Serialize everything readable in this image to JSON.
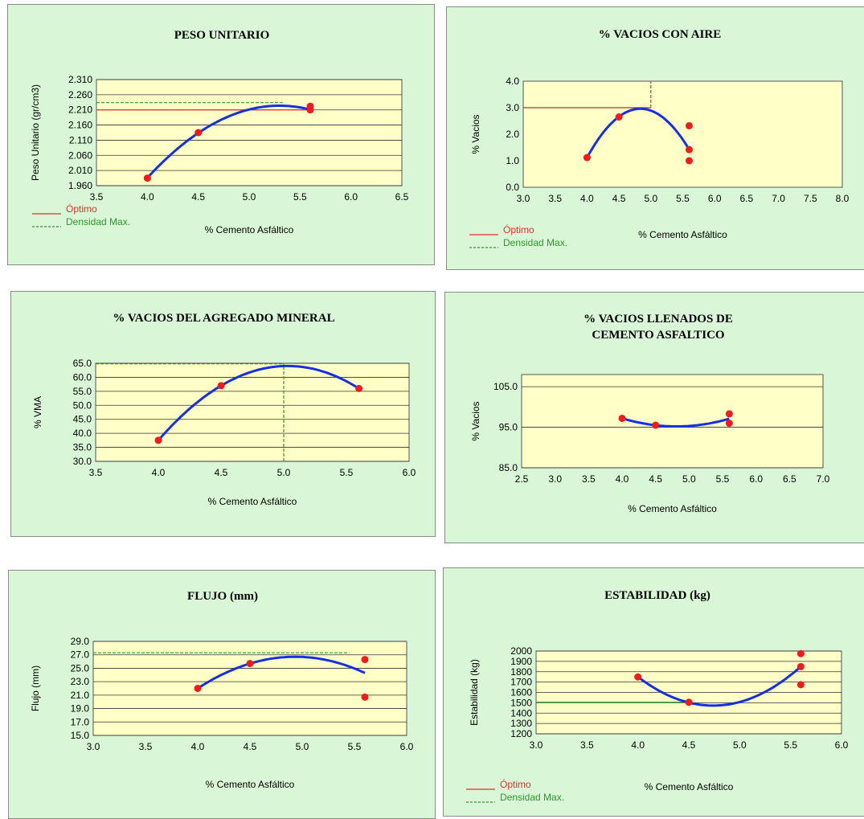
{
  "chart_data": [
    {
      "type": "scatter",
      "title": "PESO UNITARIO",
      "xlabel": "% Cemento Asfáltico",
      "ylabel": "Peso Unitario (gr/cm3)",
      "xlim": [
        3.5,
        6.5
      ],
      "ylim": [
        1.96,
        2.31
      ],
      "xticks": [
        "3.5",
        "4.0",
        "4.5",
        "5.0",
        "5.5",
        "6.0",
        "6.5"
      ],
      "yticks": [
        "1.960",
        "2.010",
        "2.060",
        "2.110",
        "2.160",
        "2.210",
        "2.260",
        "2.310"
      ],
      "points": [
        [
          4.0,
          1.985
        ],
        [
          4.5,
          2.135
        ],
        [
          5.6,
          2.222
        ],
        [
          5.6,
          2.21
        ]
      ],
      "curve": [
        [
          4.0,
          1.985
        ],
        [
          4.5,
          2.135
        ],
        [
          5.3,
          2.222
        ],
        [
          5.6,
          2.212
        ]
      ],
      "refs": [
        {
          "kind": "h",
          "y": 2.21,
          "x0": 3.5,
          "x1": 5.6,
          "color": "#e03030",
          "dash": false
        },
        {
          "kind": "h",
          "y": 2.234,
          "x0": 3.5,
          "x1": 5.35,
          "color": "#2a9a2a",
          "dash": true
        }
      ],
      "legend": [
        {
          "label": "Óptimo",
          "color": "#e03030",
          "dash": false
        },
        {
          "label": "Densidad Max.",
          "color": "#2a9a2a",
          "dash": true
        }
      ],
      "grid": true
    },
    {
      "type": "scatter",
      "title": "% VACIOS CON AIRE",
      "xlabel": "% Cemento Asfáltico",
      "ylabel": "% Vacios",
      "xlim": [
        3.0,
        8.0
      ],
      "ylim": [
        0.0,
        4.0
      ],
      "xticks": [
        "3.0",
        "3.5",
        "4.0",
        "4.5",
        "5.0",
        "5.5",
        "6.0",
        "6.5",
        "7.0",
        "7.5",
        "8.0"
      ],
      "yticks": [
        "0.0",
        "1.0",
        "2.0",
        "3.0",
        "4.0"
      ],
      "points": [
        [
          4.0,
          1.12
        ],
        [
          4.5,
          2.65
        ],
        [
          5.6,
          2.32
        ],
        [
          5.6,
          1.42
        ],
        [
          5.6,
          1.0
        ]
      ],
      "curve": [
        [
          4.0,
          1.12
        ],
        [
          4.5,
          2.65
        ],
        [
          4.85,
          2.97
        ],
        [
          5.6,
          1.42
        ]
      ],
      "refs": [
        {
          "kind": "h",
          "y": 3.0,
          "x0": 3.0,
          "x1": 5.0,
          "color": "#b03030",
          "dash": false
        },
        {
          "kind": "v",
          "x": 5.0,
          "y0": 3.0,
          "y1": 4.0,
          "color": "#e03030",
          "dash": true
        }
      ],
      "legend": [
        {
          "label": "Óptimo",
          "color": "#e03030",
          "dash": false
        },
        {
          "label": "Densidad Max.",
          "color": "#2a9a2a",
          "dash": true
        }
      ],
      "grid": false
    },
    {
      "type": "scatter",
      "title": "% VACIOS DEL AGREGADO MINERAL",
      "xlabel": "% Cemento Asfáltico",
      "ylabel": "% VMA",
      "xlim": [
        3.5,
        6.0
      ],
      "ylim": [
        30.0,
        65.0
      ],
      "xticks": [
        "3.5",
        "4.0",
        "4.5",
        "5.0",
        "5.5",
        "6.0"
      ],
      "yticks": [
        "30.0",
        "35.0",
        "40.0",
        "45.0",
        "50.0",
        "55.0",
        "60.0",
        "65.0"
      ],
      "points": [
        [
          4.0,
          37.5
        ],
        [
          4.5,
          57.0
        ],
        [
          5.6,
          56.0
        ]
      ],
      "curve": [
        [
          4.0,
          37.5
        ],
        [
          4.5,
          57.0
        ],
        [
          5.0,
          64.0
        ],
        [
          5.6,
          56.0
        ]
      ],
      "refs": [
        {
          "kind": "h",
          "y": 64.8,
          "x0": 3.5,
          "x1": 5.0,
          "color": "#2a9a2a",
          "dash": true
        },
        {
          "kind": "v",
          "x": 5.0,
          "y0": 30.0,
          "y1": 64.8,
          "color": "#2a9a2a",
          "dash": true
        }
      ],
      "legend": [],
      "grid": true
    },
    {
      "type": "scatter",
      "title": [
        "% VACIOS LLENADOS DE",
        "CEMENTO ASFALTICO"
      ],
      "xlabel": "% Cemento Asfáltico",
      "ylabel": "% Vacios",
      "xlim": [
        2.5,
        7.0
      ],
      "ylim": [
        85.0,
        108.0
      ],
      "xticks": [
        "2.5",
        "3.0",
        "3.5",
        "4.0",
        "4.5",
        "5.0",
        "5.5",
        "6.0",
        "6.5",
        "7.0"
      ],
      "yticks": [
        "85.0",
        "95.0",
        "105.0"
      ],
      "ytickvals": [
        85.0,
        95.0,
        105.0
      ],
      "points": [
        [
          4.0,
          97.2
        ],
        [
          4.5,
          95.5
        ],
        [
          5.6,
          98.3
        ],
        [
          5.6,
          96.0
        ]
      ],
      "curve": [
        [
          4.0,
          97.2
        ],
        [
          4.5,
          95.5
        ],
        [
          4.8,
          95.2
        ],
        [
          5.6,
          97.1
        ]
      ],
      "refs": [],
      "legend": [],
      "grid": true
    },
    {
      "type": "scatter",
      "title": "FLUJO (mm)",
      "xlabel": "% Cemento Asfáltico",
      "ylabel": "Flujo (mm)",
      "xlim": [
        3.0,
        6.0
      ],
      "ylim": [
        15.0,
        29.0
      ],
      "xticks": [
        "3.0",
        "3.5",
        "4.0",
        "4.5",
        "5.0",
        "5.5",
        "6.0"
      ],
      "yticks": [
        "15.0",
        "17.0",
        "19.0",
        "21.0",
        "23.0",
        "25.0",
        "27.0",
        "29.0"
      ],
      "points": [
        [
          4.0,
          22.0
        ],
        [
          4.5,
          25.7
        ],
        [
          5.6,
          26.3
        ],
        [
          5.6,
          20.7
        ]
      ],
      "curve": [
        [
          4.0,
          22.0
        ],
        [
          4.5,
          25.7
        ],
        [
          4.9,
          26.7
        ],
        [
          5.6,
          24.3
        ]
      ],
      "refs": [
        {
          "kind": "h",
          "y": 27.3,
          "x0": 3.0,
          "x1": 5.45,
          "color": "#2a9a2a",
          "dash": true
        }
      ],
      "legend": [],
      "grid": true
    },
    {
      "type": "scatter",
      "title": "ESTABILIDAD (kg)",
      "xlabel": "% Cemento Asfáltico",
      "ylabel": "Estabilidad (kg)",
      "xlim": [
        3.0,
        6.0
      ],
      "ylim": [
        1200,
        2000
      ],
      "xticks": [
        "3.0",
        "3.5",
        "4.0",
        "4.5",
        "5.0",
        "5.5",
        "6.0"
      ],
      "yticks": [
        "1200",
        "1300",
        "1400",
        "1500",
        "1600",
        "1700",
        "1800",
        "1900",
        "2000"
      ],
      "points": [
        [
          4.0,
          1750
        ],
        [
          4.5,
          1505
        ],
        [
          5.6,
          1975
        ],
        [
          5.6,
          1850
        ],
        [
          5.6,
          1675
        ]
      ],
      "curve": [
        [
          4.0,
          1750
        ],
        [
          4.5,
          1505
        ],
        [
          4.75,
          1470
        ],
        [
          5.6,
          1850
        ]
      ],
      "refs": [
        {
          "kind": "h",
          "y": 1505,
          "x0": 3.0,
          "x1": 4.5,
          "color": "#2a9a2a",
          "dash": false
        }
      ],
      "legend": [
        {
          "label": "Óptimo",
          "color": "#e03030",
          "dash": false
        },
        {
          "label": "Densidad Max.",
          "color": "#2a9a2a",
          "dash": true
        }
      ],
      "grid": true
    }
  ]
}
